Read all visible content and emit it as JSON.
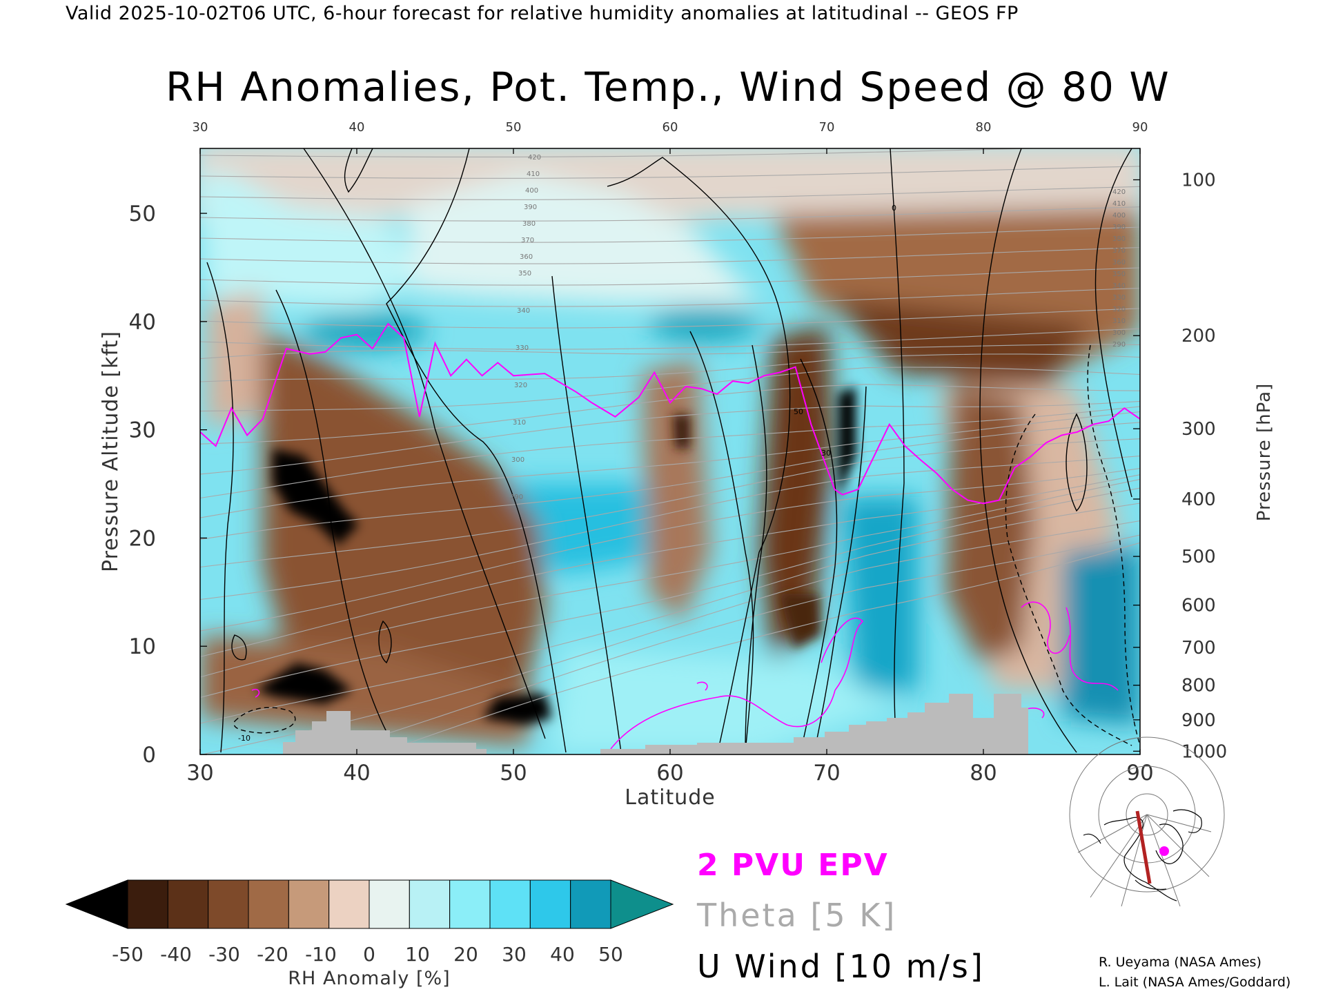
{
  "header": {
    "text": "Valid 2025-10-02T06 UTC, 6-hour forecast for relative humidity anomalies at latitudinal -- GEOS FP"
  },
  "chart_data": {
    "type": "heatmap",
    "title": "RH Anomalies, Pot. Temp., Wind Speed @ 80 W",
    "xlabel": "Latitude",
    "ylabel": "Pressure Altitude [kft]",
    "y2label": "Pressure [hPa]",
    "xlim": [
      30,
      90
    ],
    "ylim": [
      0,
      56
    ],
    "x_ticks": [
      30,
      40,
      50,
      60,
      70,
      80,
      90
    ],
    "x_tick_labels": [
      "30",
      "40",
      "50",
      "60",
      "70",
      "80",
      "90"
    ],
    "top_tick_labels": [
      "30",
      "40",
      "50",
      "60",
      "70",
      "80",
      "90"
    ],
    "y_ticks": [
      0,
      10,
      20,
      30,
      40,
      50
    ],
    "y_tick_labels": [
      "0",
      "10",
      "20",
      "30",
      "40",
      "50"
    ],
    "pressure_ticks": [
      {
        "hPa": "100",
        "kft": 53.1
      },
      {
        "hPa": "200",
        "kft": 38.7
      },
      {
        "hPa": "300",
        "kft": 30.1
      },
      {
        "hPa": "400",
        "kft": 23.6
      },
      {
        "hPa": "500",
        "kft": 18.3
      },
      {
        "hPa": "600",
        "kft": 13.8
      },
      {
        "hPa": "700",
        "kft": 9.9
      },
      {
        "hPa": "800",
        "kft": 6.4
      },
      {
        "hPa": "900",
        "kft": 3.2
      },
      {
        "hPa": "1000",
        "kft": 0.3
      }
    ],
    "theta_labels": [
      "420",
      "410",
      "400",
      "390",
      "380",
      "370",
      "360",
      "350",
      "340",
      "330",
      "320",
      "310",
      "300",
      "290"
    ],
    "u_wind_labels": [
      "0",
      "10",
      "50",
      "30",
      "-10"
    ],
    "epv_2pvu_line": [
      [
        30,
        29.8
      ],
      [
        31,
        28.5
      ],
      [
        32,
        32.0
      ],
      [
        33,
        29.5
      ],
      [
        34,
        31.0
      ],
      [
        35.5,
        37.5
      ],
      [
        37,
        37.0
      ],
      [
        38,
        37.2
      ],
      [
        39,
        38.5
      ],
      [
        40,
        38.8
      ],
      [
        41,
        37.5
      ],
      [
        42,
        39.8
      ],
      [
        43,
        38.5
      ],
      [
        44,
        31.2
      ],
      [
        45,
        38.0
      ],
      [
        46,
        35.0
      ],
      [
        47,
        36.5
      ],
      [
        48,
        35.0
      ],
      [
        49,
        36.2
      ],
      [
        50,
        35.0
      ],
      [
        52,
        35.2
      ],
      [
        54,
        33.5
      ],
      [
        55,
        32.5
      ],
      [
        56.5,
        31.2
      ],
      [
        58,
        33.0
      ],
      [
        59,
        35.3
      ],
      [
        60,
        32.5
      ],
      [
        61,
        34.0
      ],
      [
        62,
        33.8
      ],
      [
        63,
        33.3
      ],
      [
        64,
        34.5
      ],
      [
        65,
        34.3
      ],
      [
        66,
        35.0
      ],
      [
        67,
        35.3
      ],
      [
        68,
        35.8
      ],
      [
        69,
        30.5
      ],
      [
        70,
        26.5
      ],
      [
        70.5,
        24.5
      ],
      [
        71,
        24.0
      ],
      [
        72,
        24.5
      ],
      [
        73,
        27.5
      ],
      [
        74,
        30.5
      ],
      [
        75,
        28.5
      ],
      [
        76,
        27.2
      ],
      [
        77,
        26.0
      ],
      [
        78,
        24.5
      ],
      [
        79,
        23.5
      ],
      [
        80,
        23.2
      ],
      [
        81,
        23.5
      ],
      [
        82,
        26.5
      ],
      [
        83,
        27.5
      ],
      [
        84,
        28.8
      ],
      [
        85,
        29.5
      ],
      [
        86,
        29.8
      ],
      [
        87,
        30.5
      ],
      [
        88,
        30.8
      ],
      [
        89,
        32.0
      ],
      [
        90,
        31.0
      ]
    ],
    "rh_anomaly_colorbar": {
      "label": "RH Anomaly [%]",
      "tick_labels": [
        "-50",
        "-40",
        "-30",
        "-20",
        "-10",
        "0",
        "10",
        "20",
        "30",
        "40",
        "50"
      ],
      "colors": [
        "#000000",
        "#3b1d0d",
        "#5c3118",
        "#7e4a2a",
        "#a06a46",
        "#c69a7a",
        "#ecd2c2",
        "#e8f3f0",
        "#b8f1f5",
        "#8beef8",
        "#5ee1f6",
        "#2ec8ea",
        "#119ab8",
        "#0e8f8c"
      ]
    },
    "legend": {
      "epv": {
        "label": "2 PVU EPV",
        "color": "#ff00ff"
      },
      "theta": {
        "label": "Theta [5 K]",
        "color": "#b0b0b0"
      },
      "uwind": {
        "label": "U Wind [10 m/s]",
        "color": "#000000"
      }
    }
  },
  "credits": {
    "line1": "R. Ueyama (NASA Ames)",
    "line2": "L. Lait (NASA Ames/Goddard)"
  },
  "colors": {
    "terrain": "#bbbbbb",
    "epv": "#ff00ff",
    "section_line": "#b22222"
  }
}
